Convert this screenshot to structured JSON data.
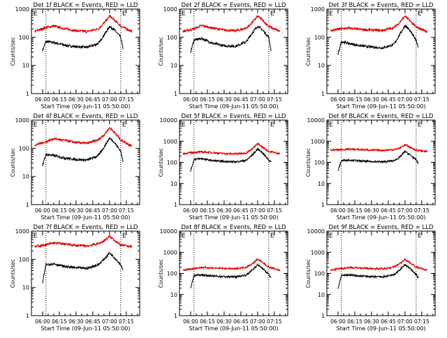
{
  "figure": {
    "xlabel": "Start Time (09-Jun-11 05:50:00)",
    "ylabel": "Counts/sec",
    "x_tick_labels": [
      "06:00",
      "06:15",
      "06:30",
      "06:45",
      "07:00",
      "07:15"
    ],
    "y_tick_labels_small": [
      "1",
      "10",
      "100",
      "1000"
    ],
    "y_tick_labels_large": [
      "1",
      "10",
      "100",
      "1000",
      "10000"
    ],
    "colors": {
      "events": "#000000",
      "lld": "#e00000",
      "axis": "#000000"
    }
  },
  "chart_data": [
    {
      "type": "line",
      "title": "Det 1f BLACK = Events, RED = LLD",
      "panel_mark": "E",
      "xlabel": "Start Time (09-Jun-11 05:50:00)",
      "ylabel": "Counts/sec",
      "yscale": "log",
      "ylim": [
        1,
        1000
      ],
      "x_ticks": [
        "06:00",
        "06:15",
        "06:30",
        "06:45",
        "07:00",
        "07:15"
      ],
      "y_ticks": [
        "1",
        "10",
        "100",
        "1000"
      ],
      "marker_lines_x": [
        "06:03",
        "07:10"
      ],
      "series": [
        {
          "color": "#000000",
          "x": [
            "06:00",
            "06:03",
            "06:10",
            "06:20",
            "06:30",
            "06:40",
            "06:50",
            "06:55",
            "07:00",
            "07:04",
            "07:10",
            "07:12"
          ],
          "values": [
            35,
            70,
            65,
            52,
            46,
            44,
            60,
            120,
            240,
            190,
            100,
            40
          ]
        },
        {
          "color": "#e00000",
          "x": [
            "05:53",
            "06:03",
            "06:10",
            "06:20",
            "06:30",
            "06:40",
            "06:50",
            "06:55",
            "07:00",
            "07:04",
            "07:10",
            "07:20"
          ],
          "values": [
            160,
            220,
            250,
            200,
            170,
            160,
            200,
            320,
            560,
            420,
            250,
            160
          ]
        }
      ]
    },
    {
      "type": "line",
      "title": "Det 2f BLACK = Events, RED = LLD",
      "panel_mark": "E",
      "xlabel": "Start Time (09-Jun-11 05:50:00)",
      "ylabel": "Counts/sec",
      "yscale": "log",
      "ylim": [
        1,
        1000
      ],
      "x_ticks": [
        "06:00",
        "06:15",
        "06:30",
        "06:45",
        "07:00",
        "07:15"
      ],
      "y_ticks": [
        "1",
        "10",
        "100",
        "1000"
      ],
      "marker_lines_x": [
        "06:03",
        "07:10"
      ],
      "series": [
        {
          "color": "#000000",
          "x": [
            "06:00",
            "06:03",
            "06:10",
            "06:20",
            "06:30",
            "06:40",
            "06:50",
            "06:55",
            "07:00",
            "07:04",
            "07:10",
            "07:12"
          ],
          "values": [
            30,
            80,
            90,
            60,
            50,
            48,
            70,
            140,
            250,
            190,
            100,
            35
          ]
        },
        {
          "color": "#e00000",
          "x": [
            "05:53",
            "06:03",
            "06:10",
            "06:20",
            "06:30",
            "06:40",
            "06:50",
            "06:55",
            "07:00",
            "07:04",
            "07:10",
            "07:20"
          ],
          "values": [
            160,
            200,
            260,
            210,
            180,
            170,
            210,
            330,
            560,
            420,
            240,
            160
          ]
        }
      ]
    },
    {
      "type": "line",
      "title": "Det 3f BLACK = Events, RED = LLD",
      "panel_mark": "E",
      "xlabel": "Start Time (09-Jun-11 05:50:00)",
      "ylabel": "Counts/sec",
      "yscale": "log",
      "ylim": [
        1,
        1000
      ],
      "x_ticks": [
        "06:00",
        "06:15",
        "06:30",
        "06:45",
        "07:00",
        "07:15"
      ],
      "y_ticks": [
        "1",
        "10",
        "100",
        "1000"
      ],
      "marker_lines_x": [
        "06:03",
        "07:10"
      ],
      "series": [
        {
          "color": "#000000",
          "x": [
            "06:00",
            "06:03",
            "06:10",
            "06:20",
            "06:30",
            "06:40",
            "06:50",
            "06:55",
            "07:00",
            "07:04",
            "07:10",
            "07:12"
          ],
          "values": [
            25,
            70,
            60,
            50,
            45,
            42,
            55,
            120,
            260,
            180,
            80,
            45
          ]
        },
        {
          "color": "#e00000",
          "x": [
            "05:53",
            "06:03",
            "06:10",
            "06:20",
            "06:30",
            "06:40",
            "06:50",
            "06:55",
            "07:00",
            "07:04",
            "07:10",
            "07:20"
          ],
          "values": [
            170,
            200,
            210,
            190,
            180,
            175,
            220,
            330,
            560,
            400,
            230,
            160
          ]
        }
      ]
    },
    {
      "type": "line",
      "title": "Det 4f BLACK = Events, RED = LLD",
      "panel_mark": "E",
      "xlabel": "Start Time (09-Jun-11 05:50:00)",
      "ylabel": "Counts/sec",
      "yscale": "log",
      "ylim": [
        1,
        1000
      ],
      "x_ticks": [
        "06:00",
        "06:15",
        "06:30",
        "06:45",
        "07:00",
        "07:15"
      ],
      "y_ticks": [
        "1",
        "10",
        "100",
        "1000"
      ],
      "marker_lines_x": [
        "06:03",
        "07:10"
      ],
      "series": [
        {
          "color": "#000000",
          "x": [
            "06:00",
            "06:03",
            "06:10",
            "06:20",
            "06:30",
            "06:40",
            "06:50",
            "06:55",
            "07:00",
            "07:04",
            "07:10",
            "07:12"
          ],
          "values": [
            25,
            60,
            55,
            45,
            40,
            38,
            55,
            110,
            230,
            170,
            80,
            35
          ]
        },
        {
          "color": "#e00000",
          "x": [
            "05:53",
            "06:03",
            "06:10",
            "06:20",
            "06:30",
            "06:40",
            "06:50",
            "06:55",
            "07:00",
            "07:04",
            "07:10",
            "07:20"
          ],
          "values": [
            130,
            170,
            220,
            190,
            160,
            150,
            200,
            300,
            540,
            380,
            200,
            120
          ]
        }
      ]
    },
    {
      "type": "line",
      "title": "Det 5f BLACK = Events, RED = LLD",
      "panel_mark": "E",
      "xlabel": "Start Time (09-Jun-11 05:50:00)",
      "ylabel": "Counts/sec",
      "yscale": "log",
      "ylim": [
        1,
        10000
      ],
      "x_ticks": [
        "06:00",
        "06:15",
        "06:30",
        "06:45",
        "07:00",
        "07:15"
      ],
      "y_ticks": [
        "1",
        "10",
        "100",
        "1000",
        "10000"
      ],
      "marker_lines_x": [
        "06:03",
        "07:10"
      ],
      "series": [
        {
          "color": "#000000",
          "x": [
            "06:00",
            "06:03",
            "06:10",
            "06:20",
            "06:30",
            "06:40",
            "06:50",
            "06:55",
            "07:00",
            "07:04",
            "07:10",
            "07:12"
          ],
          "values": [
            40,
            140,
            150,
            120,
            110,
            105,
            125,
            220,
            430,
            300,
            130,
            100
          ]
        },
        {
          "color": "#e00000",
          "x": [
            "05:53",
            "06:03",
            "06:10",
            "06:20",
            "06:30",
            "06:40",
            "06:50",
            "06:55",
            "07:00",
            "07:04",
            "07:10",
            "07:20"
          ],
          "values": [
            260,
            300,
            310,
            290,
            260,
            250,
            280,
            430,
            760,
            550,
            330,
            260
          ]
        }
      ]
    },
    {
      "type": "line",
      "title": "Det 6f BLACK = Events, RED = LLD",
      "panel_mark": "E",
      "xlabel": "Start Time (09-Jun-11 05:50:00)",
      "ylabel": "Counts/sec",
      "yscale": "log",
      "ylim": [
        1,
        10000
      ],
      "x_ticks": [
        "06:00",
        "06:15",
        "06:30",
        "06:45",
        "07:00",
        "07:15"
      ],
      "y_ticks": [
        "1",
        "10",
        "100",
        "1000",
        "10000"
      ],
      "marker_lines_x": [
        "06:03",
        "07:10"
      ],
      "series": [
        {
          "color": "#000000",
          "x": [
            "06:00",
            "06:03",
            "06:10",
            "06:20",
            "06:30",
            "06:40",
            "06:50",
            "06:55",
            "07:00",
            "07:04",
            "07:10",
            "07:12"
          ],
          "values": [
            40,
            120,
            130,
            115,
            110,
            105,
            120,
            170,
            330,
            240,
            130,
            90
          ]
        },
        {
          "color": "#e00000",
          "x": [
            "05:53",
            "06:03",
            "06:10",
            "06:20",
            "06:30",
            "06:40",
            "06:50",
            "06:55",
            "07:00",
            "07:04",
            "07:10",
            "07:20"
          ],
          "values": [
            380,
            400,
            420,
            400,
            380,
            370,
            400,
            460,
            680,
            540,
            380,
            320
          ]
        }
      ]
    },
    {
      "type": "line",
      "title": "Det 7f BLACK = Events, RED = LLD",
      "panel_mark": "E",
      "xlabel": "Start Time (09-Jun-11 05:50:00)",
      "ylabel": "Counts/sec",
      "yscale": "log",
      "ylim": [
        1,
        1000
      ],
      "x_ticks": [
        "06:00",
        "06:15",
        "06:30",
        "06:45",
        "07:00",
        "07:15"
      ],
      "y_ticks": [
        "1",
        "10",
        "100",
        "1000"
      ],
      "marker_lines_x": [
        "06:03",
        "07:10"
      ],
      "series": [
        {
          "color": "#000000",
          "x": [
            "06:00",
            "06:03",
            "06:10",
            "06:20",
            "06:30",
            "06:40",
            "06:50",
            "06:55",
            "07:00",
            "07:04",
            "07:10",
            "07:12"
          ],
          "values": [
            15,
            65,
            70,
            55,
            50,
            48,
            65,
            100,
            170,
            120,
            65,
            45
          ]
        },
        {
          "color": "#e00000",
          "x": [
            "05:53",
            "06:03",
            "06:10",
            "06:20",
            "06:30",
            "06:40",
            "06:50",
            "06:55",
            "07:00",
            "07:04",
            "07:10",
            "07:20"
          ],
          "values": [
            280,
            330,
            380,
            350,
            310,
            300,
            360,
            450,
            640,
            500,
            320,
            280
          ]
        }
      ]
    },
    {
      "type": "line",
      "title": "Det 8f BLACK = Events, RED = LLD",
      "panel_mark": "E",
      "xlabel": "Start Time (09-Jun-11 05:50:00)",
      "ylabel": "Counts/sec",
      "yscale": "log",
      "ylim": [
        1,
        10000
      ],
      "x_ticks": [
        "06:00",
        "06:15",
        "06:30",
        "06:45",
        "07:00",
        "07:15"
      ],
      "y_ticks": [
        "1",
        "10",
        "100",
        "1000",
        "10000"
      ],
      "marker_lines_x": [
        "06:03",
        "07:10"
      ],
      "series": [
        {
          "color": "#000000",
          "x": [
            "06:00",
            "06:03",
            "06:10",
            "06:20",
            "06:30",
            "06:40",
            "06:50",
            "06:55",
            "07:00",
            "07:04",
            "07:10",
            "07:12"
          ],
          "values": [
            20,
            80,
            85,
            75,
            70,
            68,
            85,
            140,
            260,
            180,
            90,
            60
          ]
        },
        {
          "color": "#e00000",
          "x": [
            "05:53",
            "06:03",
            "06:10",
            "06:20",
            "06:30",
            "06:40",
            "06:50",
            "06:55",
            "07:00",
            "07:04",
            "07:10",
            "07:20"
          ],
          "values": [
            140,
            170,
            190,
            180,
            170,
            165,
            200,
            280,
            470,
            340,
            200,
            140
          ]
        }
      ]
    },
    {
      "type": "line",
      "title": "Det 9f BLACK = Events, RED = LLD",
      "panel_mark": "E",
      "xlabel": "Start Time (09-Jun-11 05:50:00)",
      "ylabel": "Counts/sec",
      "yscale": "log",
      "ylim": [
        1,
        10000
      ],
      "x_ticks": [
        "06:00",
        "06:15",
        "06:30",
        "06:45",
        "07:00",
        "07:15"
      ],
      "y_ticks": [
        "1",
        "10",
        "100",
        "1000",
        "10000"
      ],
      "marker_lines_x": [
        "06:03",
        "07:10"
      ],
      "series": [
        {
          "color": "#000000",
          "x": [
            "06:00",
            "06:03",
            "06:10",
            "06:20",
            "06:30",
            "06:40",
            "06:50",
            "06:55",
            "07:00",
            "07:04",
            "07:10",
            "07:12"
          ],
          "values": [
            20,
            80,
            85,
            75,
            70,
            68,
            85,
            140,
            260,
            180,
            90,
            60
          ]
        },
        {
          "color": "#e00000",
          "x": [
            "05:53",
            "06:03",
            "06:10",
            "06:20",
            "06:30",
            "06:40",
            "06:50",
            "06:55",
            "07:00",
            "07:04",
            "07:10",
            "07:20"
          ],
          "values": [
            140,
            170,
            190,
            180,
            170,
            165,
            200,
            280,
            470,
            340,
            200,
            140
          ]
        }
      ]
    }
  ]
}
